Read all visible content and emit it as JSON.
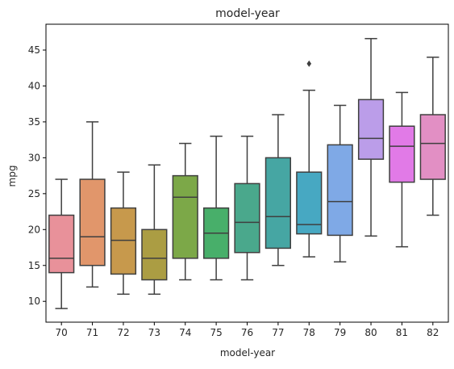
{
  "chart_data": {
    "type": "box",
    "title": "model-year",
    "xlabel": "model-year",
    "ylabel": "mpg",
    "ylim": [
      7.1,
      48.6
    ],
    "yticks": [
      10,
      15,
      20,
      25,
      30,
      35,
      40,
      45
    ],
    "grid": false,
    "legend": "none",
    "categories": [
      "70",
      "71",
      "72",
      "73",
      "74",
      "75",
      "76",
      "77",
      "78",
      "79",
      "80",
      "81",
      "82"
    ],
    "boxes": [
      {
        "category": "70",
        "whisker_low": 9.0,
        "q1": 14.0,
        "median": 16.0,
        "q3": 22.0,
        "whisker_high": 27.0,
        "outliers": []
      },
      {
        "category": "71",
        "whisker_low": 12.0,
        "q1": 15.0,
        "median": 19.0,
        "q3": 27.0,
        "whisker_high": 35.0,
        "outliers": []
      },
      {
        "category": "72",
        "whisker_low": 11.0,
        "q1": 13.8,
        "median": 18.5,
        "q3": 23.0,
        "whisker_high": 28.0,
        "outliers": []
      },
      {
        "category": "73",
        "whisker_low": 11.0,
        "q1": 13.0,
        "median": 16.0,
        "q3": 20.0,
        "whisker_high": 29.0,
        "outliers": []
      },
      {
        "category": "74",
        "whisker_low": 13.0,
        "q1": 16.0,
        "median": 24.5,
        "q3": 27.5,
        "whisker_high": 32.0,
        "outliers": []
      },
      {
        "category": "75",
        "whisker_low": 13.0,
        "q1": 16.0,
        "median": 19.5,
        "q3": 23.0,
        "whisker_high": 33.0,
        "outliers": []
      },
      {
        "category": "76",
        "whisker_low": 13.0,
        "q1": 16.8,
        "median": 21.0,
        "q3": 26.4,
        "whisker_high": 33.0,
        "outliers": []
      },
      {
        "category": "77",
        "whisker_low": 15.0,
        "q1": 17.4,
        "median": 21.8,
        "q3": 30.0,
        "whisker_high": 36.0,
        "outliers": []
      },
      {
        "category": "78",
        "whisker_low": 16.2,
        "q1": 19.4,
        "median": 20.7,
        "q3": 28.0,
        "whisker_high": 39.4,
        "outliers": [
          43.1
        ]
      },
      {
        "category": "79",
        "whisker_low": 15.5,
        "q1": 19.2,
        "median": 23.9,
        "q3": 31.8,
        "whisker_high": 37.3,
        "outliers": []
      },
      {
        "category": "80",
        "whisker_low": 19.1,
        "q1": 29.8,
        "median": 32.7,
        "q3": 38.1,
        "whisker_high": 46.6,
        "outliers": []
      },
      {
        "category": "81",
        "whisker_low": 17.6,
        "q1": 26.6,
        "median": 31.6,
        "q3": 34.4,
        "whisker_high": 39.1,
        "outliers": []
      },
      {
        "category": "82",
        "whisker_low": 22.0,
        "q1": 27.0,
        "median": 32.0,
        "q3": 36.0,
        "whisker_high": 44.0,
        "outliers": []
      }
    ],
    "colors": [
      "#e8919a",
      "#e1966b",
      "#c7994c",
      "#ab9d43",
      "#7ca848",
      "#48af6a",
      "#4aa88c",
      "#46a6a3",
      "#47a8c2",
      "#7fa9e6",
      "#bb9de9",
      "#e17ae7",
      "#e28fc4"
    ],
    "line_color": "#3f3f3f"
  }
}
